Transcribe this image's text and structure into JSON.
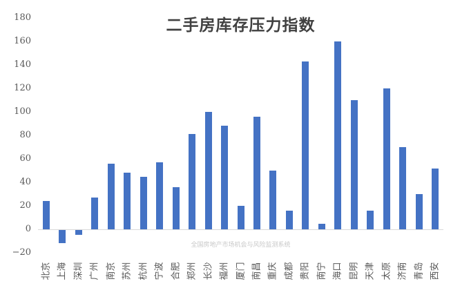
{
  "chart_data": {
    "type": "bar",
    "title": "二手房库存压力指数",
    "watermark": "全国房地产市场机会与风险监测系统",
    "categories": [
      "北京",
      "上海",
      "深圳",
      "广州",
      "南京",
      "苏州",
      "杭州",
      "宁波",
      "合肥",
      "郑州",
      "长沙",
      "福州",
      "厦门",
      "南昌",
      "重庆",
      "成都",
      "贵阳",
      "南宁",
      "海口",
      "昆明",
      "天津",
      "太原",
      "济南",
      "青岛",
      "西安"
    ],
    "values": [
      24,
      -11,
      -4,
      27,
      56,
      48,
      45,
      57,
      36,
      81,
      100,
      88,
      20,
      96,
      50,
      16,
      143,
      5,
      160,
      110,
      16,
      120,
      70,
      30,
      52
    ],
    "y_ticks": [
      -20,
      0,
      20,
      40,
      60,
      80,
      100,
      120,
      140,
      160,
      180
    ],
    "ylim": [
      -20,
      180
    ],
    "grid": false,
    "legend": false,
    "xlabel": "",
    "ylabel": "",
    "bar_color": "#4472C4",
    "axis_color": "#D9D9D9",
    "tick_label_color": "#595959",
    "title_color": "#404040",
    "watermark_color": "#C8C8C8"
  }
}
